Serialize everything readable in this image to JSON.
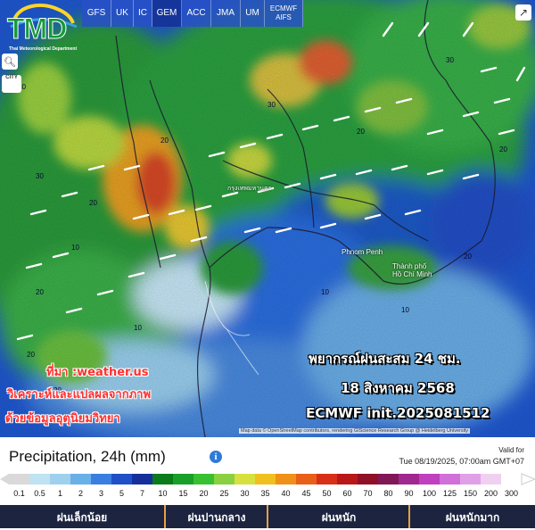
{
  "branding": {
    "logo_text": "TMD",
    "logo_subtitle": "Thai Meteorological Department"
  },
  "model_tabs": [
    "GFS",
    "UK",
    "IC",
    "GEM",
    "ACC",
    "JMA",
    "UM",
    "ECMWF AIFS"
  ],
  "map_controls": {
    "zoom_icon": "magnifier-icon",
    "city_label": "CITY",
    "share_icon": "external-link-icon"
  },
  "city_labels": {
    "bangkok": "กรุงเทพมหานคร",
    "phnom_penh": "Phnom Penh",
    "hcmc_line1": "Thành phố",
    "hcmc_line2": "Hồ Chí Minh"
  },
  "source_lines": [
    "ที่มา :weather.us",
    "วิเคราะห์และแปลผลจากภาพ",
    "ด้วยข้อมูลอุตุนิยมวิทยา"
  ],
  "forecast_lines": [
    "พยากรณ์ฝนสะสม 24 ชม.",
    "18 สิงหาคม 2568",
    "ECMWF init.2025081512"
  ],
  "attribution": "Map data © OpenStreetMap contributors, rendering GIScience Research Group @ Heidelberg University",
  "legend": {
    "title": "Precipitation, 24h (mm)",
    "info_icon": "info-icon",
    "valid_label": "Valid for",
    "valid_time": "Tue 08/19/2025, 07:00am GMT+07",
    "ticks": [
      "0.1",
      "0.5",
      "1",
      "2",
      "3",
      "5",
      "7",
      "10",
      "15",
      "20",
      "25",
      "30",
      "35",
      "40",
      "45",
      "50",
      "60",
      "70",
      "80",
      "90",
      "100",
      "125",
      "150",
      "200",
      "300"
    ],
    "colors": [
      "#d9d9d9",
      "#bfe3f2",
      "#9fd0ee",
      "#6ab0e8",
      "#3a7fe0",
      "#2050c8",
      "#15309a",
      "#0a7a1a",
      "#18a028",
      "#38c030",
      "#8ad040",
      "#d8e040",
      "#f0c020",
      "#f09018",
      "#e86018",
      "#d83018",
      "#b81818",
      "#901028",
      "#801858",
      "#a02890",
      "#c040c0",
      "#d070d8",
      "#e0a0e8",
      "#f0d0f0",
      "#ffffff"
    ],
    "categories": [
      "ฝนเล็กน้อย",
      "ฝนปานกลาง",
      "ฝนหนัก",
      "ฝนหนักมาก"
    ],
    "category_color": "#e8a040"
  }
}
